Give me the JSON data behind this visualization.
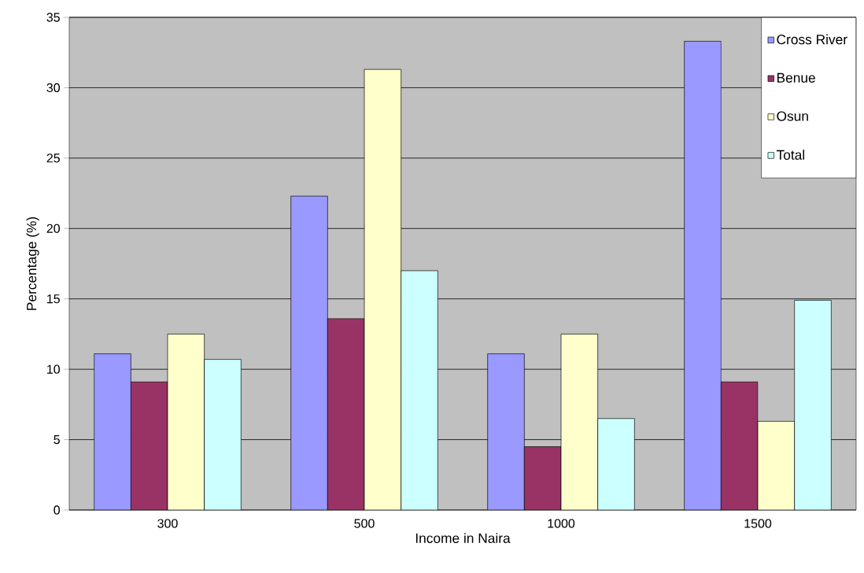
{
  "chart_data": {
    "type": "bar",
    "xlabel": "Income in Naira",
    "ylabel": "Percentage (%)",
    "categories": [
      "300",
      "500",
      "1000",
      "1500"
    ],
    "series": [
      {
        "name": "Cross River",
        "color": "#9999ff",
        "values": [
          11.1,
          22.3,
          11.1,
          33.3
        ]
      },
      {
        "name": "Benue",
        "color": "#993366",
        "values": [
          9.1,
          13.6,
          4.5,
          9.1
        ]
      },
      {
        "name": "Osun",
        "color": "#ffffcc",
        "values": [
          12.5,
          31.3,
          12.5,
          6.3
        ]
      },
      {
        "name": "Total",
        "color": "#ccffff",
        "values": [
          10.7,
          17.0,
          6.5,
          14.9
        ]
      }
    ],
    "ylim": [
      0,
      35
    ],
    "yticks": [
      0,
      5,
      10,
      15,
      20,
      25,
      30,
      35
    ],
    "grid": "y",
    "legend": "top right"
  }
}
